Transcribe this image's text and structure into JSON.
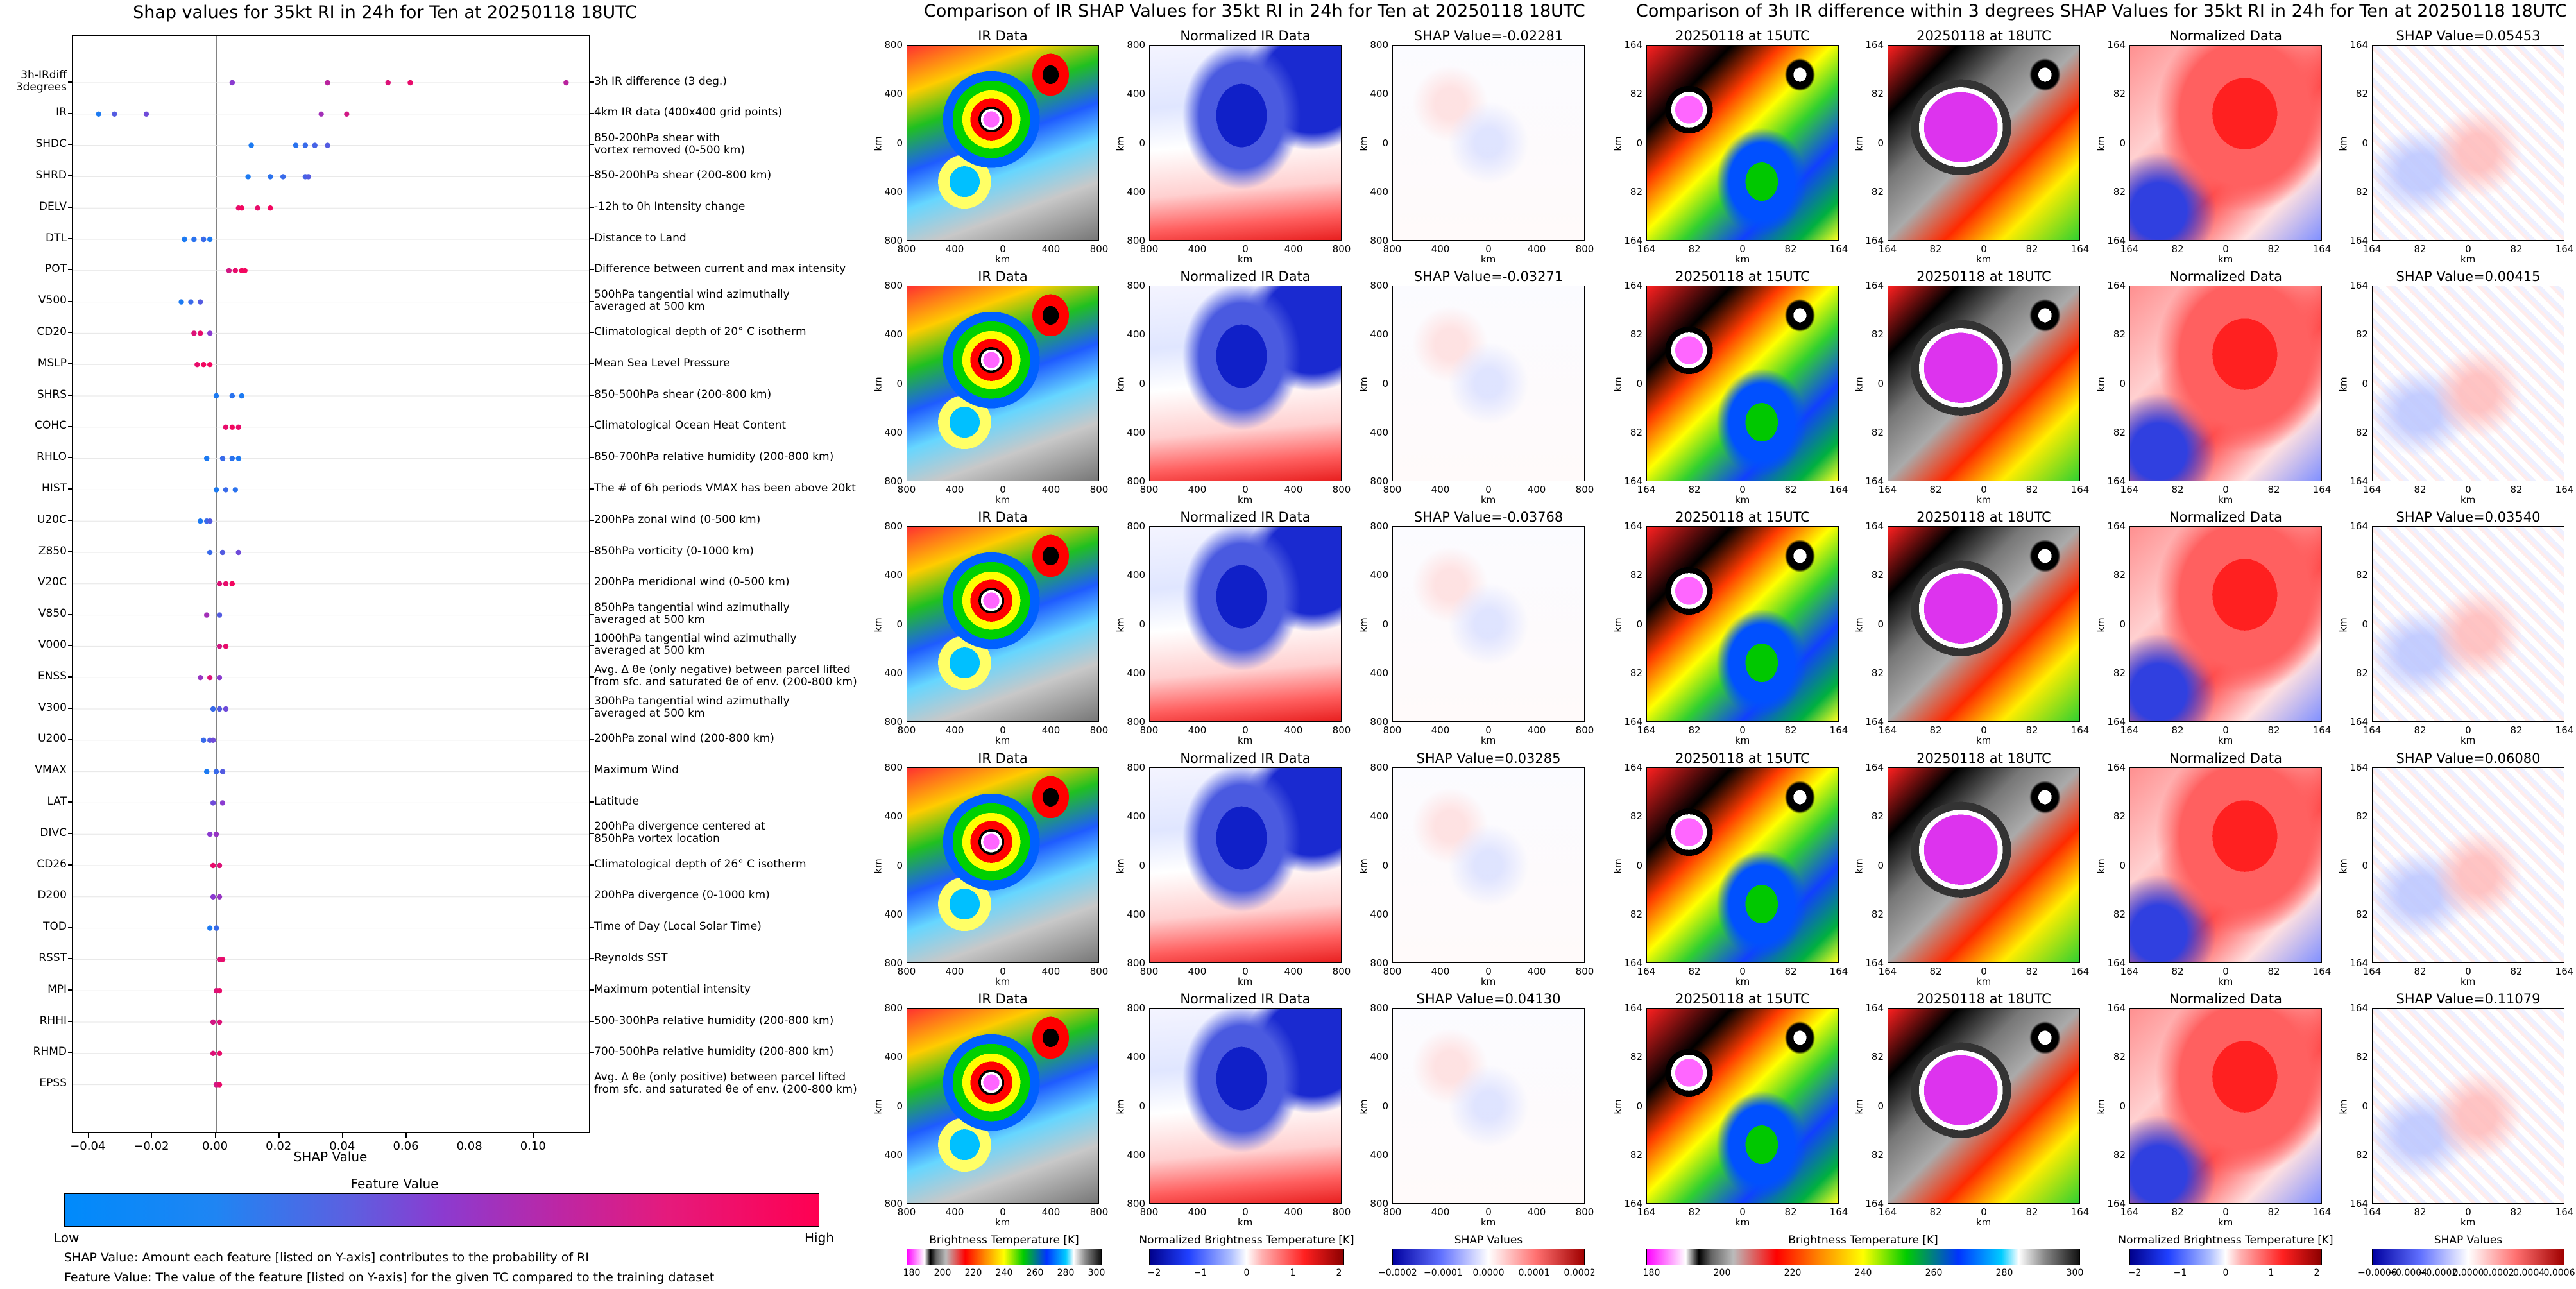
{
  "left": {
    "title": "Shap values for 35kt RI in 24h for Ten at 20250118 18UTC",
    "xlabel": "SHAP Value",
    "xticks": [
      "−0.04",
      "−0.02",
      "0.00",
      "0.02",
      "0.04",
      "0.06",
      "0.08",
      "0.10"
    ],
    "feature_value_title": "Feature Value",
    "low_label": "Low",
    "high_label": "High",
    "caption_1": "SHAP Value: Amount each feature [listed on Y-axis] contributes to the probability of RI",
    "caption_2": "Feature Value: The value of the feature [listed on Y-axis] for the given TC compared to the training dataset",
    "colors": {
      "low": "#008afb",
      "mid": "#8b3bd0",
      "high": "#ff0052"
    }
  },
  "mid": {
    "title": "Comparison of IR SHAP Values for 35kt RI in 24h for Ten at 20250118 18UTC",
    "col_titles": [
      "IR Data",
      "Normalized IR Data"
    ],
    "shap_prefix": "SHAP Value=",
    "rows_shap": [
      "-0.02281",
      "-0.03271",
      "-0.03768",
      "0.03285",
      "0.04130"
    ],
    "ticks": [
      "800",
      "400",
      "0",
      "400",
      "800"
    ],
    "axis_unit": "km",
    "cbar_titles": [
      "Brightness Temperature [K]",
      "Normalized Brightness Temperature [K]",
      "SHAP Values"
    ],
    "cbar1_ticks": [
      "180",
      "200",
      "220",
      "240",
      "260",
      "280",
      "300"
    ],
    "cbar2_ticks": [
      "−2",
      "−1",
      "0",
      "1",
      "2"
    ],
    "cbar3_ticks": [
      "−0.0002",
      "−0.0001",
      "0.0000",
      "0.0001",
      "0.0002"
    ]
  },
  "right": {
    "title": "Comparison of 3h IR difference within 3 degrees SHAP Values for 35kt RI in 24h for Ten at 20250118 18UTC",
    "col_titles": [
      "20250118 at 15UTC",
      "20250118 at 18UTC",
      "Normalized Data"
    ],
    "shap_prefix": "SHAP Value=",
    "rows_shap": [
      "0.05453",
      "0.00415",
      "0.03540",
      "0.06080",
      "0.11079"
    ],
    "ticks": [
      "164",
      "82",
      "0",
      "82",
      "164"
    ],
    "axis_unit": "km",
    "cbar_titles": [
      "Brightness Temperature [K]",
      "Normalized Brightness Temperature [K]",
      "SHAP Values"
    ],
    "cbar1_ticks": [
      "180",
      "200",
      "220",
      "240",
      "260",
      "280",
      "300"
    ],
    "cbar2_ticks": [
      "−2",
      "−1",
      "0",
      "1",
      "2"
    ],
    "cbar3_ticks": [
      "−0.0006",
      "−0.0004",
      "−0.0002",
      "0.0000",
      "0.0002",
      "0.0004",
      "0.0006"
    ]
  },
  "chart_data": {
    "type": "scatter",
    "title": "Shap values for 35kt RI in 24h for Ten at 20250118 18UTC",
    "xlabel": "SHAP Value",
    "ylabel": "",
    "xlim": [
      -0.045,
      0.118
    ],
    "colorbar": {
      "title": "Feature Value",
      "low": "Low",
      "high": "High"
    },
    "features": [
      {
        "code": "3h-IRdiff\n3degrees",
        "desc": "3h IR difference (3 deg.)",
        "points": [
          [
            0.005,
            0.5
          ],
          [
            0.035,
            0.7
          ],
          [
            0.054,
            0.85
          ],
          [
            0.061,
            0.9
          ],
          [
            0.11,
            0.7
          ]
        ]
      },
      {
        "code": "IR",
        "desc": "4km IR data (400x400 grid points)",
        "points": [
          [
            -0.037,
            0.1
          ],
          [
            -0.032,
            0.3
          ],
          [
            -0.022,
            0.4
          ],
          [
            0.033,
            0.6
          ],
          [
            0.041,
            0.8
          ]
        ]
      },
      {
        "code": "SHDC",
        "desc": "850-200hPa shear with\nvortex removed (0-500 km)",
        "points": [
          [
            0.011,
            0.1
          ],
          [
            0.025,
            0.15
          ],
          [
            0.028,
            0.2
          ],
          [
            0.031,
            0.25
          ],
          [
            0.035,
            0.3
          ]
        ]
      },
      {
        "code": "SHRD",
        "desc": "850-200hPa shear (200-800 km)",
        "points": [
          [
            0.01,
            0.1
          ],
          [
            0.017,
            0.15
          ],
          [
            0.021,
            0.2
          ],
          [
            0.028,
            0.25
          ],
          [
            0.029,
            0.3
          ]
        ]
      },
      {
        "code": "DELV",
        "desc": "-12h to 0h Intensity change",
        "points": [
          [
            0.007,
            0.9
          ],
          [
            0.008,
            0.95
          ],
          [
            0.013,
            0.9
          ],
          [
            0.017,
            0.95
          ]
        ]
      },
      {
        "code": "DTL",
        "desc": "Distance to Land",
        "points": [
          [
            -0.01,
            0.1
          ],
          [
            -0.007,
            0.15
          ],
          [
            -0.004,
            0.2
          ],
          [
            -0.002,
            0.1
          ]
        ]
      },
      {
        "code": "POT",
        "desc": "Difference between current and max intensity",
        "points": [
          [
            0.004,
            0.8
          ],
          [
            0.006,
            0.9
          ],
          [
            0.008,
            0.95
          ],
          [
            0.009,
            0.95
          ]
        ]
      },
      {
        "code": "V500",
        "desc": "500hPa tangential wind azimuthally\naveraged at 500 km",
        "points": [
          [
            -0.011,
            0.1
          ],
          [
            -0.008,
            0.2
          ],
          [
            -0.005,
            0.3
          ]
        ]
      },
      {
        "code": "CD20",
        "desc": "Climatological depth of 20° C isotherm",
        "points": [
          [
            -0.007,
            0.85
          ],
          [
            -0.005,
            0.9
          ],
          [
            -0.002,
            0.5
          ]
        ]
      },
      {
        "code": "MSLP",
        "desc": "Mean Sea Level Pressure",
        "points": [
          [
            -0.006,
            0.9
          ],
          [
            -0.004,
            0.95
          ],
          [
            -0.002,
            0.95
          ]
        ]
      },
      {
        "code": "SHRS",
        "desc": "850-500hPa shear (200-800 km)",
        "points": [
          [
            0.0,
            0.1
          ],
          [
            0.005,
            0.15
          ],
          [
            0.008,
            0.1
          ]
        ]
      },
      {
        "code": "COHC",
        "desc": "Climatological Ocean Heat Content",
        "points": [
          [
            0.003,
            0.9
          ],
          [
            0.005,
            0.95
          ],
          [
            0.007,
            0.9
          ]
        ]
      },
      {
        "code": "RHLO",
        "desc": "850-700hPa relative humidity (200-800 km)",
        "points": [
          [
            -0.003,
            0.1
          ],
          [
            0.002,
            0.2
          ],
          [
            0.005,
            0.15
          ],
          [
            0.007,
            0.1
          ]
        ]
      },
      {
        "code": "HIST",
        "desc": "The # of 6h periods VMAX has been above 20kt",
        "points": [
          [
            0.0,
            0.1
          ],
          [
            0.003,
            0.2
          ],
          [
            0.006,
            0.15
          ]
        ]
      },
      {
        "code": "U20C",
        "desc": "200hPa zonal wind (0-500 km)",
        "points": [
          [
            -0.005,
            0.1
          ],
          [
            -0.003,
            0.2
          ],
          [
            -0.002,
            0.3
          ]
        ]
      },
      {
        "code": "Z850",
        "desc": "850hPa vorticity (0-1000 km)",
        "points": [
          [
            -0.002,
            0.2
          ],
          [
            0.002,
            0.3
          ],
          [
            0.007,
            0.4
          ]
        ]
      },
      {
        "code": "V20C",
        "desc": "200hPa meridional wind (0-500 km)",
        "points": [
          [
            0.001,
            0.85
          ],
          [
            0.003,
            0.9
          ],
          [
            0.005,
            0.95
          ]
        ]
      },
      {
        "code": "V850",
        "desc": "850hPa tangential wind azimuthally\naveraged at 500 km",
        "points": [
          [
            -0.003,
            0.6
          ],
          [
            0.001,
            0.3
          ]
        ]
      },
      {
        "code": "V000",
        "desc": "1000hPa tangential wind azimuthally\naveraged at 500 km",
        "points": [
          [
            0.001,
            0.8
          ],
          [
            0.003,
            0.9
          ]
        ]
      },
      {
        "code": "ENSS",
        "desc": "Avg. Δ θe (only negative) between parcel lifted\nfrom sfc. and saturated θe of env. (200-800 km)",
        "points": [
          [
            -0.005,
            0.55
          ],
          [
            -0.002,
            0.85
          ],
          [
            0.001,
            0.5
          ]
        ]
      },
      {
        "code": "V300",
        "desc": "300hPa tangential wind azimuthally\naveraged at 500 km",
        "points": [
          [
            -0.001,
            0.2
          ],
          [
            0.001,
            0.3
          ],
          [
            0.003,
            0.4
          ]
        ]
      },
      {
        "code": "U200",
        "desc": "200hPa zonal wind (200-800 km)",
        "points": [
          [
            -0.004,
            0.2
          ],
          [
            -0.002,
            0.3
          ],
          [
            -0.001,
            0.4
          ]
        ]
      },
      {
        "code": "VMAX",
        "desc": "Maximum Wind",
        "points": [
          [
            -0.003,
            0.1
          ],
          [
            0.0,
            0.2
          ],
          [
            0.002,
            0.3
          ]
        ]
      },
      {
        "code": "LAT",
        "desc": "Latitude",
        "points": [
          [
            -0.001,
            0.4
          ],
          [
            0.002,
            0.5
          ]
        ]
      },
      {
        "code": "DIVC",
        "desc": "200hPa divergence centered at\n850hPa vortex location",
        "points": [
          [
            -0.002,
            0.5
          ],
          [
            0.0,
            0.55
          ]
        ]
      },
      {
        "code": "CD26",
        "desc": "Climatological depth of 26° C isotherm",
        "points": [
          [
            -0.001,
            0.9
          ],
          [
            0.001,
            0.85
          ]
        ]
      },
      {
        "code": "D200",
        "desc": "200hPa divergence (0-1000 km)",
        "points": [
          [
            -0.001,
            0.5
          ],
          [
            0.001,
            0.55
          ]
        ]
      },
      {
        "code": "TOD",
        "desc": "Time of Day (Local Solar Time)",
        "points": [
          [
            -0.002,
            0.1
          ],
          [
            0.0,
            0.2
          ]
        ]
      },
      {
        "code": "RSST",
        "desc": "Reynolds SST",
        "points": [
          [
            0.001,
            0.85
          ],
          [
            0.002,
            0.9
          ]
        ]
      },
      {
        "code": "MPI",
        "desc": "Maximum potential intensity",
        "points": [
          [
            0.0,
            0.85
          ],
          [
            0.001,
            0.9
          ]
        ]
      },
      {
        "code": "RHHI",
        "desc": "500-300hPa relative humidity (200-800 km)",
        "points": [
          [
            -0.001,
            0.8
          ],
          [
            0.001,
            0.85
          ]
        ]
      },
      {
        "code": "RHMD",
        "desc": "700-500hPa relative humidity (200-800 km)",
        "points": [
          [
            -0.001,
            0.85
          ],
          [
            0.001,
            0.9
          ]
        ]
      },
      {
        "code": "EPSS",
        "desc": "Avg. Δ θe (only positive) between parcel lifted\nfrom sfc. and saturated θe of env. (200-800 km)",
        "points": [
          [
            0.0,
            0.8
          ],
          [
            0.001,
            0.9
          ]
        ]
      }
    ]
  }
}
